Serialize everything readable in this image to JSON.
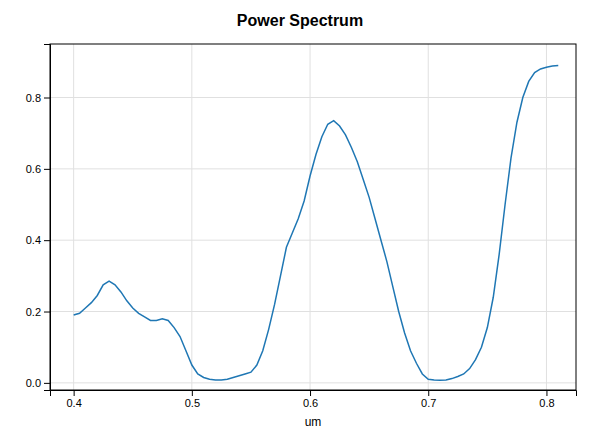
{
  "chart_data": {
    "type": "line",
    "title": "Power Spectrum",
    "xlabel": "um",
    "x": [
      0.4,
      0.405,
      0.41,
      0.415,
      0.42,
      0.425,
      0.43,
      0.435,
      0.44,
      0.445,
      0.45,
      0.455,
      0.46,
      0.465,
      0.47,
      0.475,
      0.48,
      0.485,
      0.49,
      0.495,
      0.5,
      0.505,
      0.51,
      0.515,
      0.52,
      0.525,
      0.53,
      0.535,
      0.54,
      0.545,
      0.55,
      0.555,
      0.56,
      0.565,
      0.57,
      0.575,
      0.58,
      0.585,
      0.59,
      0.595,
      0.6,
      0.605,
      0.61,
      0.615,
      0.62,
      0.625,
      0.63,
      0.635,
      0.64,
      0.645,
      0.65,
      0.655,
      0.66,
      0.665,
      0.67,
      0.675,
      0.68,
      0.685,
      0.69,
      0.695,
      0.7,
      0.705,
      0.71,
      0.715,
      0.72,
      0.725,
      0.73,
      0.735,
      0.74,
      0.745,
      0.75,
      0.755,
      0.76,
      0.765,
      0.77,
      0.775,
      0.78,
      0.785,
      0.79,
      0.795,
      0.8,
      0.805,
      0.81
    ],
    "values": [
      0.19,
      0.195,
      0.21,
      0.225,
      0.245,
      0.275,
      0.285,
      0.275,
      0.255,
      0.23,
      0.21,
      0.195,
      0.185,
      0.175,
      0.175,
      0.18,
      0.175,
      0.155,
      0.13,
      0.09,
      0.05,
      0.025,
      0.015,
      0.01,
      0.008,
      0.008,
      0.01,
      0.015,
      0.02,
      0.025,
      0.03,
      0.05,
      0.09,
      0.15,
      0.22,
      0.3,
      0.38,
      0.42,
      0.46,
      0.51,
      0.58,
      0.64,
      0.69,
      0.725,
      0.735,
      0.72,
      0.695,
      0.66,
      0.62,
      0.57,
      0.52,
      0.46,
      0.4,
      0.34,
      0.27,
      0.2,
      0.14,
      0.09,
      0.055,
      0.025,
      0.01,
      0.008,
      0.007,
      0.008,
      0.012,
      0.018,
      0.025,
      0.04,
      0.065,
      0.1,
      0.155,
      0.24,
      0.36,
      0.5,
      0.63,
      0.73,
      0.8,
      0.845,
      0.87,
      0.88,
      0.885,
      0.888,
      0.89
    ],
    "xlim": [
      0.38,
      0.825
    ],
    "ylim": [
      -0.02,
      0.95
    ],
    "xticks": [
      0.4,
      0.5,
      0.6,
      0.7,
      0.8
    ],
    "yticks": [
      {
        "value": 0,
        "label": "0.0"
      },
      0.2,
      0.4,
      0.6,
      0.8
    ],
    "grid": true
  }
}
